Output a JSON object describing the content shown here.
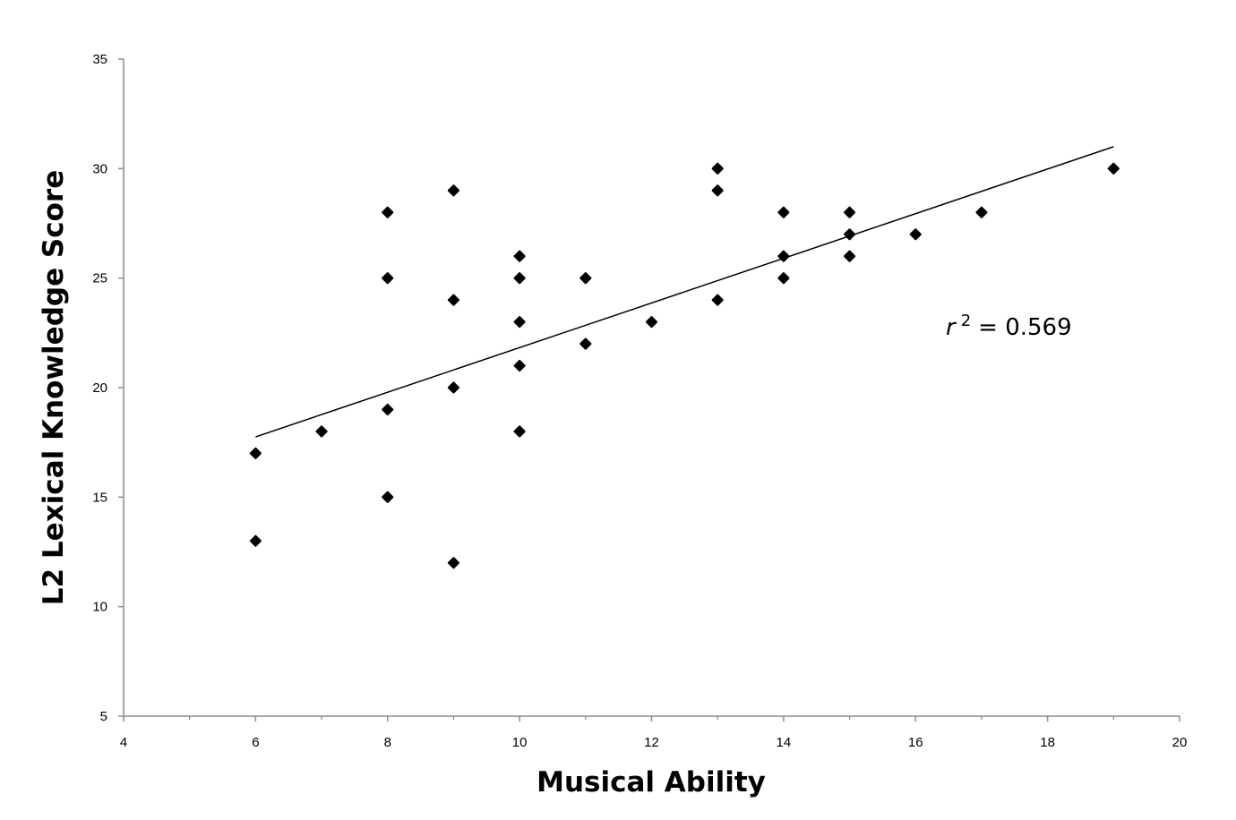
{
  "chart_data": {
    "type": "scatter",
    "title": "",
    "xlabel": "Musical Ability",
    "ylabel": "L2 Lexical Knowledge Score",
    "xlim": [
      4,
      20
    ],
    "ylim": [
      5,
      35
    ],
    "x_ticks": [
      4,
      6,
      8,
      10,
      12,
      14,
      16,
      18,
      20
    ],
    "y_ticks": [
      5,
      10,
      15,
      20,
      25,
      30,
      35
    ],
    "grid": false,
    "legend": "none",
    "marker_color": "#000000",
    "points": [
      {
        "x": 6,
        "y": 17
      },
      {
        "x": 6,
        "y": 13
      },
      {
        "x": 7,
        "y": 18
      },
      {
        "x": 8,
        "y": 28
      },
      {
        "x": 8,
        "y": 25
      },
      {
        "x": 8,
        "y": 19
      },
      {
        "x": 8,
        "y": 15
      },
      {
        "x": 9,
        "y": 29
      },
      {
        "x": 9,
        "y": 24
      },
      {
        "x": 9,
        "y": 20
      },
      {
        "x": 9,
        "y": 12
      },
      {
        "x": 10,
        "y": 26
      },
      {
        "x": 10,
        "y": 25
      },
      {
        "x": 10,
        "y": 23
      },
      {
        "x": 10,
        "y": 21
      },
      {
        "x": 10,
        "y": 18
      },
      {
        "x": 11,
        "y": 25
      },
      {
        "x": 11,
        "y": 22
      },
      {
        "x": 12,
        "y": 23
      },
      {
        "x": 13,
        "y": 30
      },
      {
        "x": 13,
        "y": 29
      },
      {
        "x": 13,
        "y": 24
      },
      {
        "x": 14,
        "y": 28
      },
      {
        "x": 14,
        "y": 26
      },
      {
        "x": 14,
        "y": 25
      },
      {
        "x": 15,
        "y": 28
      },
      {
        "x": 15,
        "y": 27
      },
      {
        "x": 15,
        "y": 26
      },
      {
        "x": 16,
        "y": 27
      },
      {
        "x": 17,
        "y": 28
      },
      {
        "x": 19,
        "y": 30
      }
    ],
    "trendline": {
      "x1": 6,
      "y1": 17.75,
      "x2": 19,
      "y2": 31.0
    },
    "annotation": {
      "r": "r",
      "sup": "2",
      "text": "= 0.569"
    }
  }
}
